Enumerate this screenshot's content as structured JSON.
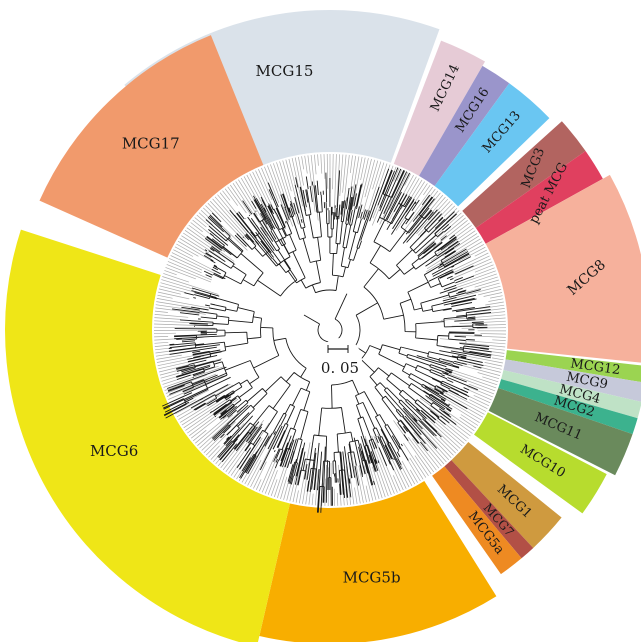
{
  "clades": [
    {
      "id": "MCG15",
      "label": "MCG15",
      "color": "#dae2ea"
    },
    {
      "id": "MCG14",
      "label": "MCG14",
      "color": "#e6cbd6"
    },
    {
      "id": "MCG16",
      "label": "MCG16",
      "color": "#9a95cb"
    },
    {
      "id": "MCG13",
      "label": "MCG13",
      "color": "#6ac6f2"
    },
    {
      "id": "MCG3",
      "label": "MCG3",
      "color": "#b26460"
    },
    {
      "id": "peatMCG",
      "label": "peat MCG",
      "color": "#e0405f"
    },
    {
      "id": "MCG8",
      "label": "MCG8",
      "color": "#f6b19c"
    },
    {
      "id": "MCG12",
      "label": "MCG12",
      "color": "#9bd451"
    },
    {
      "id": "MCG9",
      "label": "MCG9",
      "color": "#c6c9da"
    },
    {
      "id": "MCG4",
      "label": "MCG4",
      "color": "#bfe2c6"
    },
    {
      "id": "MCG2",
      "label": "MCG2",
      "color": "#3cb28e"
    },
    {
      "id": "MCG11",
      "label": "MCG11",
      "color": "#6a8a5c"
    },
    {
      "id": "MCG10",
      "label": "MCG10",
      "color": "#b7dc2e"
    },
    {
      "id": "MCG1",
      "label": "MCG1",
      "color": "#cf9a3f"
    },
    {
      "id": "MCG7",
      "label": "MCG7",
      "color": "#b25046"
    },
    {
      "id": "MCG5a",
      "label": "MCG5a",
      "color": "#ee8a22"
    },
    {
      "id": "MCG5b",
      "label": "MCG5b",
      "color": "#f8ae00"
    },
    {
      "id": "MCG6",
      "label": "MCG6",
      "color": "#efe617"
    },
    {
      "id": "MCG17",
      "label": "MCG17",
      "color": "#f19a6c"
    }
  ],
  "scale_bar": {
    "label": "0. 05"
  },
  "tree": {
    "color": "#1a1a1a",
    "leaf_color": "#aaaaaa"
  }
}
